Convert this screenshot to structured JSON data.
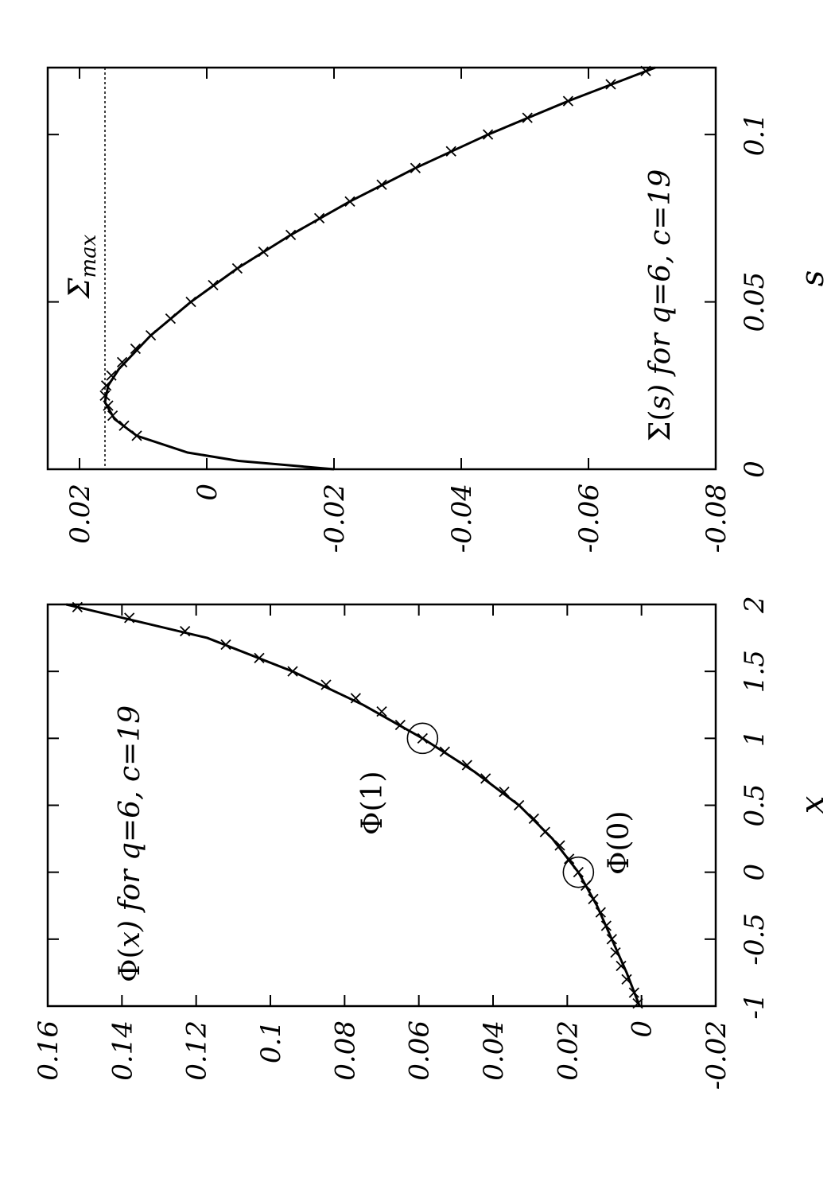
{
  "chart_data": [
    {
      "type": "scatter",
      "xlabel": "x",
      "ylabel": "",
      "xlim": [
        -1,
        2
      ],
      "ylim": [
        -0.02,
        0.16
      ],
      "x_ticks": [
        -1,
        -0.5,
        0,
        0.5,
        1,
        1.5,
        2
      ],
      "x_tick_labels": [
        "-1",
        "-0.5",
        "0",
        "0.5",
        "1",
        "1.5",
        "2"
      ],
      "y_ticks": [
        -0.02,
        0,
        0.02,
        0.04,
        0.06,
        0.08,
        0.1,
        0.12,
        0.14,
        0.16
      ],
      "y_tick_labels": [
        "-0.02",
        "0",
        "0.02",
        "0.04",
        "0.06",
        "0.08",
        "0.1",
        "0.12",
        "0.14",
        "0.16"
      ],
      "grid": false,
      "curve": {
        "x": [
          -1,
          -0.75,
          -0.5,
          -0.25,
          0,
          0.25,
          0.5,
          0.75,
          1,
          1.25,
          1.5,
          1.75,
          2
        ],
        "y": [
          0.0005,
          0.004,
          0.008,
          0.012,
          0.017,
          0.024,
          0.033,
          0.045,
          0.059,
          0.075,
          0.094,
          0.117,
          0.155
        ]
      },
      "markers": {
        "x": [
          -0.98,
          -0.9,
          -0.8,
          -0.7,
          -0.6,
          -0.5,
          -0.4,
          -0.3,
          -0.2,
          -0.1,
          0.0,
          0.1,
          0.2,
          0.3,
          0.4,
          0.5,
          0.6,
          0.7,
          0.8,
          0.9,
          1.0,
          1.1,
          1.2,
          1.3,
          1.4,
          1.5,
          1.6,
          1.7,
          1.8,
          1.9,
          1.98
        ],
        "y": [
          0.001,
          0.002,
          0.004,
          0.0055,
          0.007,
          0.008,
          0.0095,
          0.011,
          0.013,
          0.015,
          0.017,
          0.0195,
          0.022,
          0.026,
          0.029,
          0.033,
          0.037,
          0.042,
          0.047,
          0.053,
          0.059,
          0.065,
          0.07,
          0.077,
          0.085,
          0.094,
          0.103,
          0.112,
          0.123,
          0.138,
          0.152
        ]
      },
      "annotations": [
        {
          "text_pre": "Φ(",
          "text_it": "x",
          "text_post": ") for q=6, c=19",
          "x": -1,
          "y": 0.145
        },
        {
          "text": "Φ(1)",
          "x": 0.8,
          "y": 0.079
        },
        {
          "text": "Φ(0)",
          "x": -0.03,
          "y": 0.013
        }
      ],
      "circled_points": [
        {
          "x": 0,
          "y": 0.017
        },
        {
          "x": 1,
          "y": 0.059
        }
      ]
    },
    {
      "type": "scatter",
      "xlabel": "s",
      "ylabel": "",
      "xlim": [
        0,
        0.12
      ],
      "ylim": [
        -0.08,
        0.025
      ],
      "x_ticks": [
        0,
        0.05,
        0.1
      ],
      "x_tick_labels": [
        "0",
        "0.05",
        "0.1"
      ],
      "y_ticks": [
        -0.08,
        -0.06,
        -0.04,
        -0.02,
        0,
        0.02
      ],
      "y_tick_labels": [
        "-0.08",
        "-0.06",
        "-0.04",
        "-0.02",
        "0",
        "0.02"
      ],
      "grid": false,
      "curve": {
        "x": [
          0,
          0.0025,
          0.005,
          0.01,
          0.015,
          0.02,
          0.025,
          0.03,
          0.04,
          0.05,
          0.06,
          0.07,
          0.08,
          0.09,
          0.1,
          0.11,
          0.12
        ],
        "y": [
          -0.02,
          -0.005,
          0.003,
          0.011,
          0.0145,
          0.016,
          0.0155,
          0.0138,
          0.0088,
          0.0025,
          -0.0048,
          -0.0132,
          -0.0225,
          -0.0328,
          -0.0442,
          -0.0568,
          -0.0705
        ]
      },
      "markers": {
        "x": [
          0.01,
          0.013,
          0.016,
          0.019,
          0.022,
          0.025,
          0.028,
          0.032,
          0.036,
          0.04,
          0.045,
          0.05,
          0.055,
          0.06,
          0.065,
          0.07,
          0.075,
          0.08,
          0.085,
          0.09,
          0.095,
          0.1,
          0.105,
          0.11,
          0.115,
          0.119
        ],
        "y": [
          0.011,
          0.013,
          0.0148,
          0.0155,
          0.016,
          0.0158,
          0.015,
          0.0133,
          0.0112,
          0.0088,
          0.0057,
          0.0025,
          -0.001,
          -0.0048,
          -0.0089,
          -0.0132,
          -0.0177,
          -0.0225,
          -0.0275,
          -0.0328,
          -0.0384,
          -0.0442,
          -0.0504,
          -0.0568,
          -0.0635,
          -0.069
        ]
      },
      "reference_line": {
        "label_main": "Σ",
        "label_sub": "max",
        "y": 0.016
      },
      "annotations": [
        {
          "text_pre": "Σ(",
          "text_it": "s",
          "text_post": ") for q=6, c=19",
          "x": 0.12,
          "y": 0.0
        }
      ]
    }
  ]
}
